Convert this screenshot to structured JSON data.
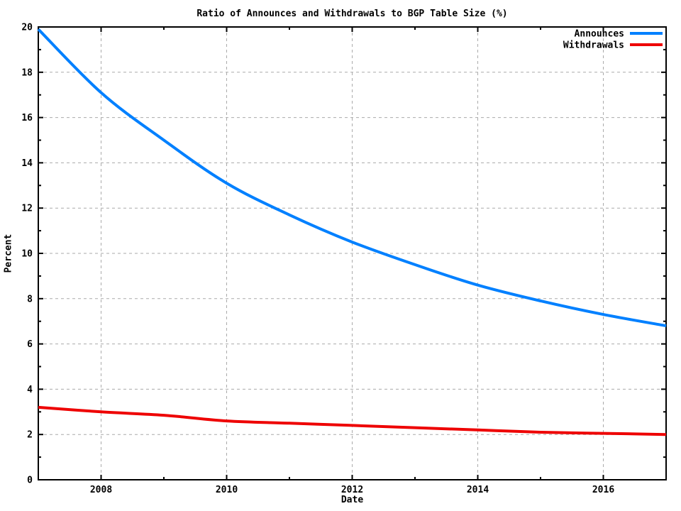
{
  "chart_data": {
    "type": "line",
    "title": "Ratio of Announces and Withdrawals to BGP Table Size (%)",
    "xlabel": "Date",
    "ylabel": "Percent",
    "xlim": [
      2007,
      2017
    ],
    "ylim": [
      0,
      20
    ],
    "x_major_ticks": [
      2008,
      2010,
      2012,
      2014,
      2016
    ],
    "x_minor_ticks": [
      2009,
      2011,
      2013,
      2015
    ],
    "y_major_step": 2,
    "y_minor_step": 1,
    "grid": "dashed gray lines at major ticks, both axes",
    "legend_position": "top-right inside plot, no box",
    "x": [
      2007,
      2008,
      2009,
      2010,
      2011,
      2012,
      2013,
      2014,
      2015,
      2016,
      2017
    ],
    "series": [
      {
        "name": "Announces",
        "color": "#0080ff",
        "values": [
          19.9,
          17.1,
          15.0,
          13.1,
          11.7,
          10.5,
          9.5,
          8.6,
          7.9,
          7.3,
          6.8
        ]
      },
      {
        "name": "Withdrawals",
        "color": "#ee0000",
        "values": [
          3.2,
          3.0,
          2.85,
          2.6,
          2.5,
          2.4,
          2.3,
          2.2,
          2.1,
          2.05,
          2.0
        ]
      }
    ],
    "colors": {
      "background": "#ffffff",
      "axis": "#000000",
      "grid": "#aaaaaa",
      "text": "#000000"
    }
  }
}
